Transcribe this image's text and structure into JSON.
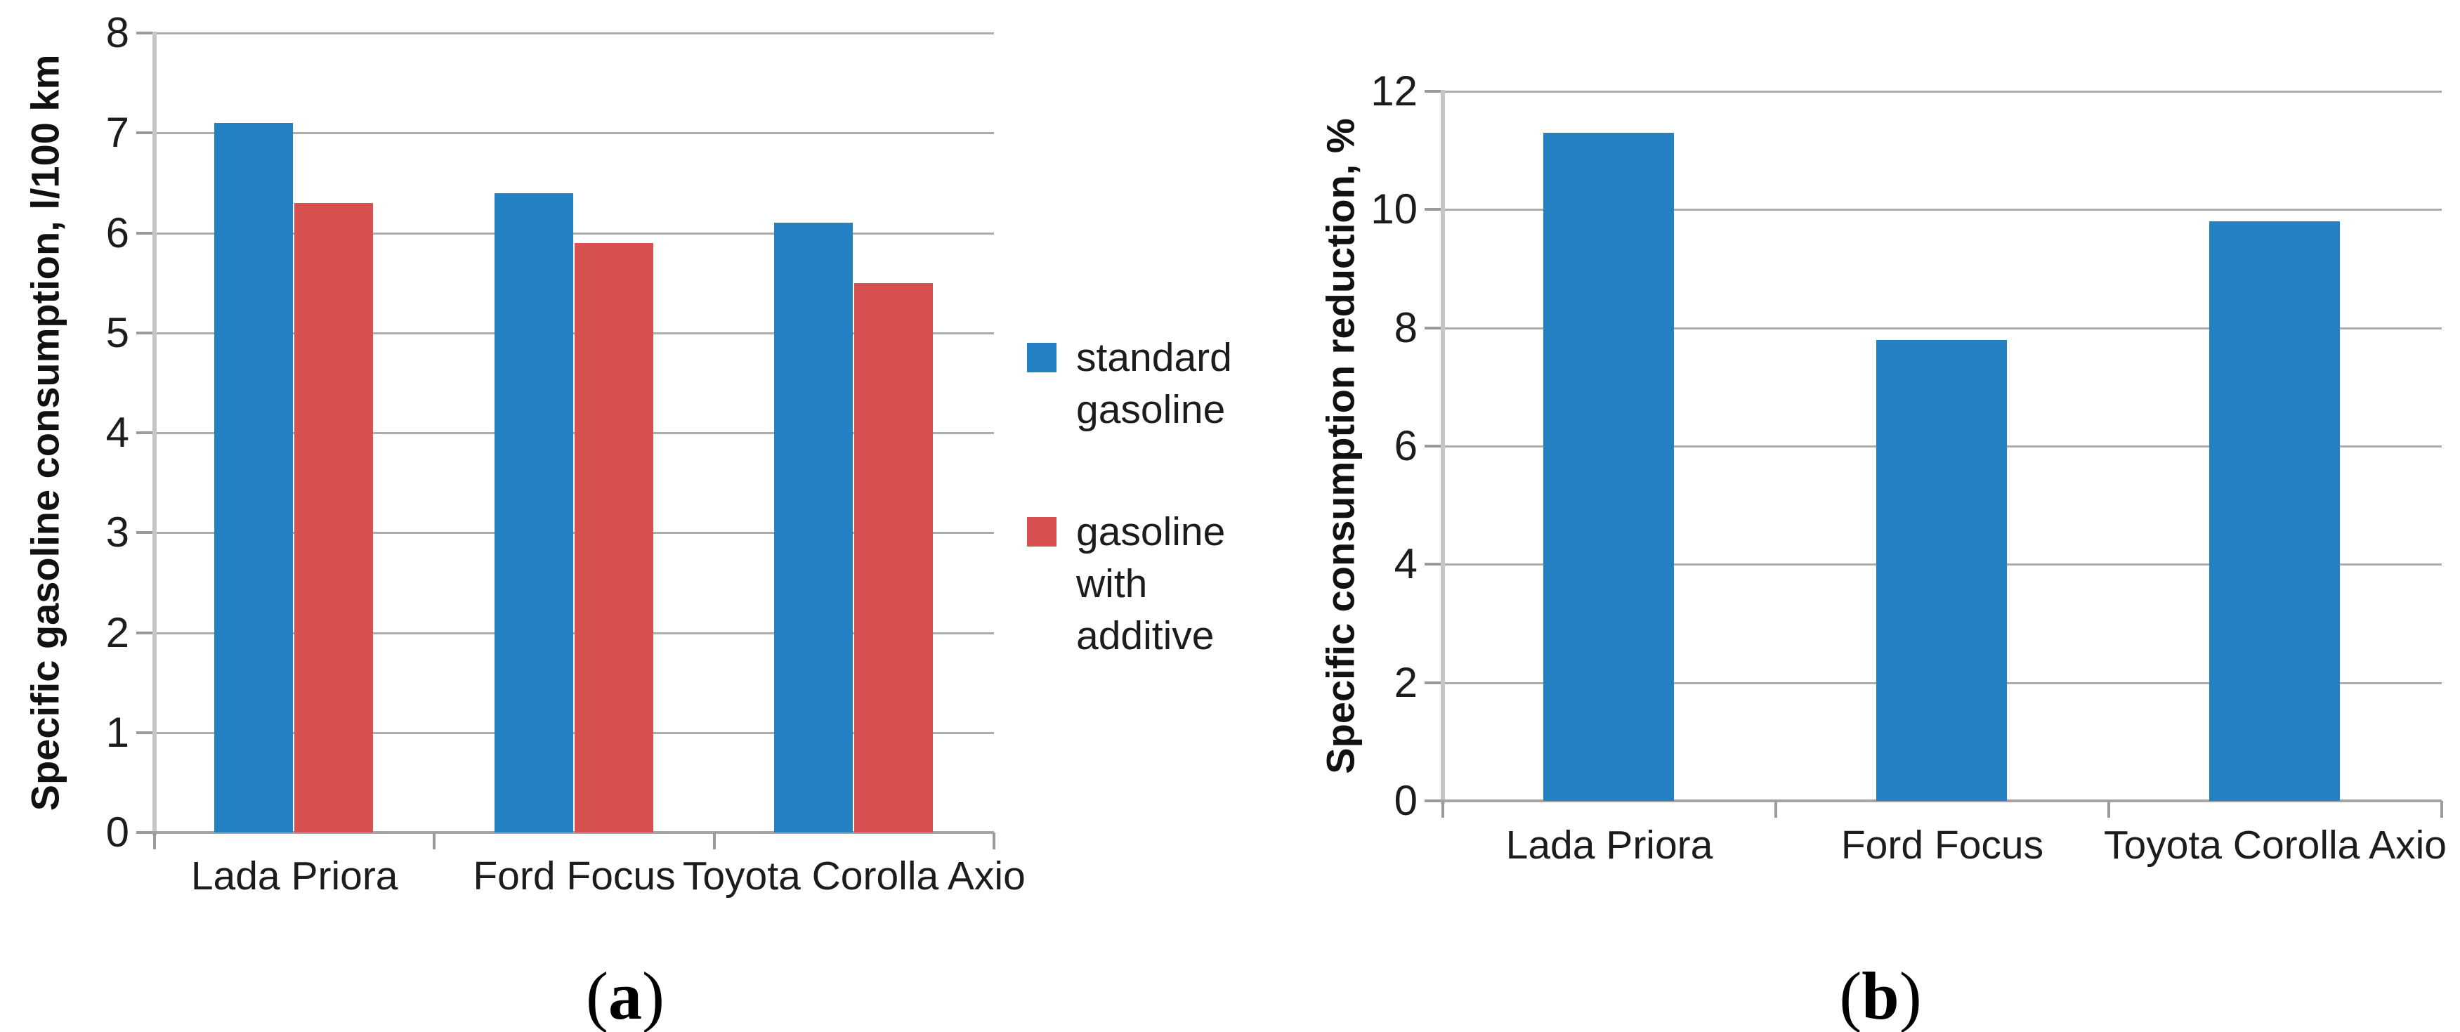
{
  "figure": {
    "background": "#ffffff",
    "caption_a": "(a)",
    "caption_b": "(b)"
  },
  "colors": {
    "blue": "#2481c4",
    "red": "#d85151",
    "gridline": "#acacac",
    "axis_line": "#c6c6c6",
    "tick": "#9b9b9b",
    "text": "#1c1c1c"
  },
  "legend": {
    "position": "right-of-panel-a",
    "items": [
      {
        "label": "standard gasoline",
        "color_key": "blue"
      },
      {
        "label": "gasoline with additive",
        "color_key": "red"
      }
    ]
  },
  "chart_data": [
    {
      "id": "a",
      "type": "bar",
      "title": "",
      "caption": "(a)",
      "xlabel": "",
      "ylabel": "Specific gasoline consumption, l/100 km",
      "categories": [
        "Lada Priora",
        "Ford Focus",
        "Toyota Corolla Axio"
      ],
      "series": [
        {
          "name": "standard gasoline",
          "color_key": "blue",
          "values": [
            7.1,
            6.4,
            6.1
          ]
        },
        {
          "name": "gasoline with additive",
          "color_key": "red",
          "values": [
            6.3,
            5.9,
            5.5
          ]
        }
      ],
      "ylim": [
        0,
        8
      ],
      "yticks": [
        0,
        1,
        2,
        3,
        4,
        5,
        6,
        7,
        8
      ],
      "grid": "horizontal",
      "legend_position": "right"
    },
    {
      "id": "b",
      "type": "bar",
      "title": "",
      "caption": "(b)",
      "xlabel": "",
      "ylabel": "Specific consumption reduction, %",
      "categories": [
        "Lada Priora",
        "Ford Focus",
        "Toyota Corolla Axio"
      ],
      "series": [
        {
          "name": "standard gasoline",
          "color_key": "blue",
          "values": [
            11.3,
            7.8,
            9.8
          ]
        }
      ],
      "ylim": [
        0,
        12
      ],
      "yticks": [
        0,
        2,
        4,
        6,
        8,
        10,
        12
      ],
      "grid": "horizontal",
      "legend_position": "none"
    }
  ]
}
